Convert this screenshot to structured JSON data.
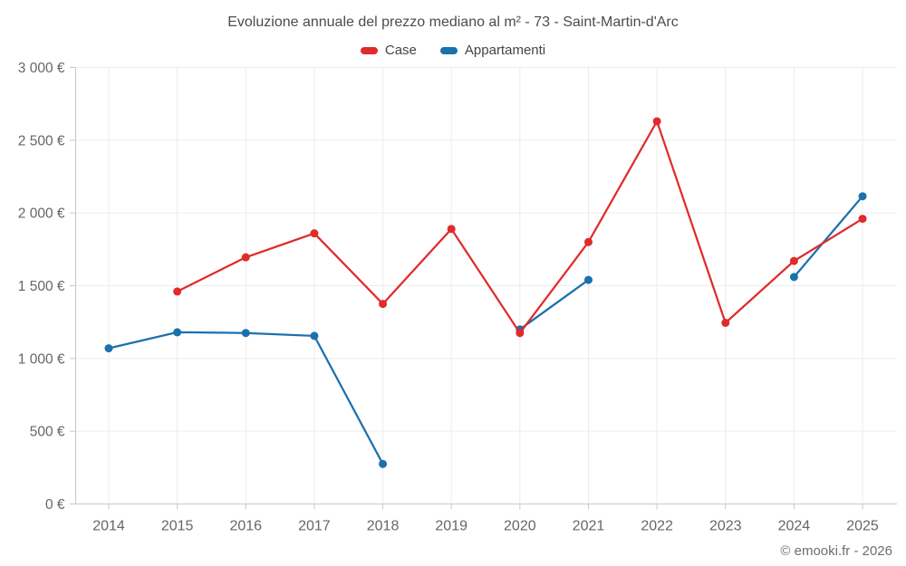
{
  "chart_data": {
    "type": "line",
    "title": "Evoluzione annuale del prezzo mediano al m² - 73 - Saint-Martin-d'Arc",
    "xlabel": "",
    "ylabel": "",
    "x": [
      "2014",
      "2015",
      "2016",
      "2017",
      "2018",
      "2019",
      "2020",
      "2021",
      "2022",
      "2023",
      "2024",
      "2025"
    ],
    "ylim": [
      0,
      3000
    ],
    "ytick_step": 500,
    "ytick_labels": [
      "0 €",
      "500 €",
      "1 000 €",
      "1 500 €",
      "2 000 €",
      "2 500 €",
      "3 000 €"
    ],
    "grid": true,
    "legend_position": "top-center",
    "series": [
      {
        "name": "Case",
        "color": "#e02b2b",
        "values": [
          null,
          1460,
          1695,
          1860,
          1375,
          1890,
          1175,
          1800,
          2630,
          1245,
          1670,
          1960
        ]
      },
      {
        "name": "Appartamenti",
        "color": "#1a71ad",
        "values": [
          1070,
          1180,
          1175,
          1155,
          275,
          null,
          1200,
          1540,
          null,
          null,
          1560,
          2115
        ]
      }
    ]
  },
  "colors": {
    "background": "#ffffff",
    "grid": "#ececec",
    "axis": "#c9c9c9",
    "tick_label": "#666666",
    "title": "#4c4c4c",
    "legend_text": "#444444",
    "footer_text": "#6e6e6e"
  },
  "footer": {
    "text": "© emooki.fr - 2026"
  }
}
